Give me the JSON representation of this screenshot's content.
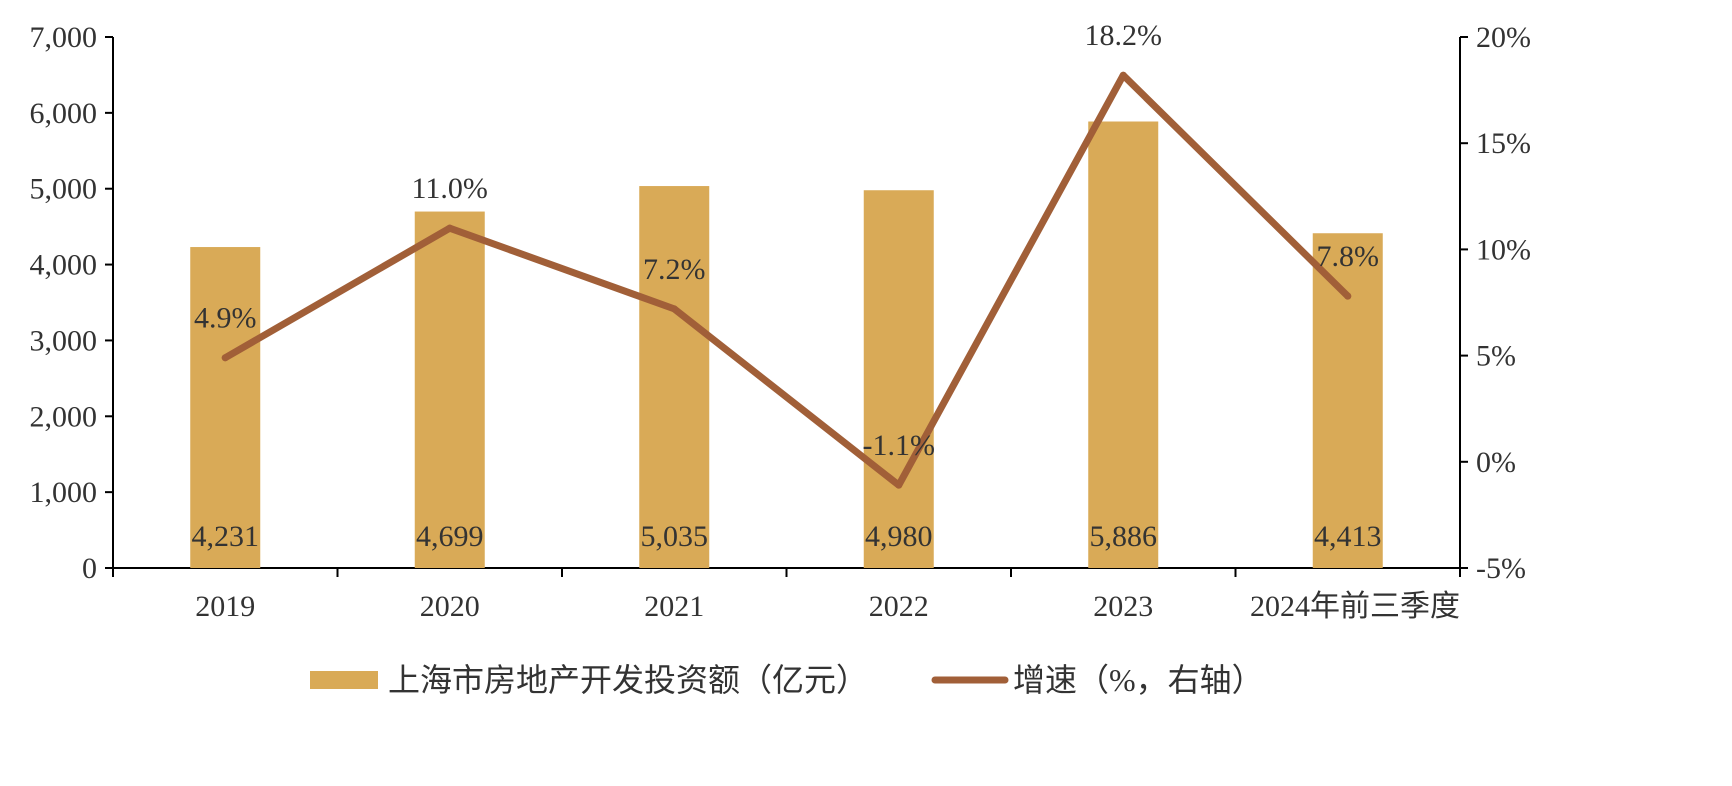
{
  "chart_data": {
    "type": "bar",
    "categories": [
      "2019",
      "2020",
      "2021",
      "2022",
      "2023",
      "2024年前三季度"
    ],
    "series": [
      {
        "name": "上海市房地产开发投资额（亿元）",
        "type": "bar",
        "axis": "left",
        "values": [
          4231,
          4699,
          5035,
          4980,
          5886,
          4413
        ],
        "labels": [
          "4,231",
          "4,699",
          "5,035",
          "4,980",
          "5,886",
          "4,413"
        ]
      },
      {
        "name": "增速（%，右轴）",
        "type": "line",
        "axis": "right",
        "values": [
          4.9,
          11.0,
          7.2,
          -1.1,
          18.2,
          7.8
        ],
        "labels": [
          "4.9%",
          "11.0%",
          "7.2%",
          "-1.1%",
          "18.2%",
          "7.8%"
        ]
      }
    ],
    "y_left": {
      "ylim": [
        0,
        7000
      ],
      "ticks": [
        0,
        1000,
        2000,
        3000,
        4000,
        5000,
        6000,
        7000
      ],
      "tick_labels": [
        "0",
        "1,000",
        "2,000",
        "3,000",
        "4,000",
        "5,000",
        "6,000",
        "7,000"
      ]
    },
    "y_right": {
      "ylim": [
        -5,
        20
      ],
      "ticks": [
        -5,
        0,
        5,
        10,
        15,
        20
      ],
      "tick_labels": [
        "-5%",
        "0%",
        "5%",
        "10%",
        "15%",
        "20%"
      ]
    },
    "legend_position": "bottom",
    "grid": false,
    "colors": {
      "bar": "#D9AA57",
      "line": "#A15F38",
      "axis": "#000000",
      "text": "#333333"
    }
  }
}
